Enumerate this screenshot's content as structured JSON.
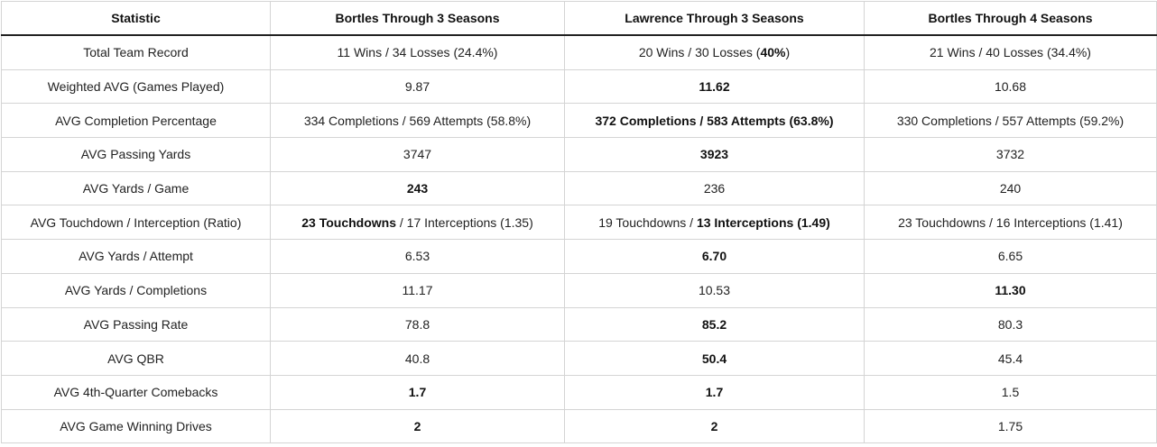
{
  "table": {
    "headers": [
      "Statistic",
      "Bortles Through 3 Seasons",
      "Lawrence Through 3 Seasons",
      "Bortles Through 4 Seasons"
    ],
    "rows": [
      {
        "label": "Total Team Record",
        "cells": [
          [
            {
              "t": "11 Wins / 34 Losses (24.4%)",
              "b": false
            }
          ],
          [
            {
              "t": "20 Wins / 30 Losses (",
              "b": false
            },
            {
              "t": "40%",
              "b": true
            },
            {
              "t": ")",
              "b": false
            }
          ],
          [
            {
              "t": "21 Wins / 40 Losses (34.4%)",
              "b": false
            }
          ]
        ]
      },
      {
        "label": "Weighted AVG (Games Played)",
        "cells": [
          [
            {
              "t": "9.87",
              "b": false
            }
          ],
          [
            {
              "t": "11.62",
              "b": true
            }
          ],
          [
            {
              "t": "10.68",
              "b": false
            }
          ]
        ]
      },
      {
        "label": "AVG Completion Percentage",
        "cells": [
          [
            {
              "t": "334 Completions / 569 Attempts (58.8%)",
              "b": false
            }
          ],
          [
            {
              "t": "372 Completions / 583 Attempts (63.8%)",
              "b": true
            }
          ],
          [
            {
              "t": "330 Completions / 557 Attempts (59.2%)",
              "b": false
            }
          ]
        ]
      },
      {
        "label": "AVG Passing Yards",
        "cells": [
          [
            {
              "t": "3747",
              "b": false
            }
          ],
          [
            {
              "t": "3923",
              "b": true
            }
          ],
          [
            {
              "t": "3732",
              "b": false
            }
          ]
        ]
      },
      {
        "label": "AVG Yards / Game",
        "cells": [
          [
            {
              "t": "243",
              "b": true
            }
          ],
          [
            {
              "t": "236",
              "b": false
            }
          ],
          [
            {
              "t": "240",
              "b": false
            }
          ]
        ]
      },
      {
        "label": "AVG Touchdown / Interception (Ratio)",
        "cells": [
          [
            {
              "t": "23 Touchdowns",
              "b": true
            },
            {
              "t": " / 17 Interceptions (1.35)",
              "b": false
            }
          ],
          [
            {
              "t": "19 Touchdowns / ",
              "b": false
            },
            {
              "t": "13 Interceptions (1.49)",
              "b": true
            }
          ],
          [
            {
              "t": "23 Touchdowns / 16 Interceptions (1.41)",
              "b": false
            }
          ]
        ]
      },
      {
        "label": "AVG Yards / Attempt",
        "cells": [
          [
            {
              "t": "6.53",
              "b": false
            }
          ],
          [
            {
              "t": "6.70",
              "b": true
            }
          ],
          [
            {
              "t": "6.65",
              "b": false
            }
          ]
        ]
      },
      {
        "label": "AVG Yards / Completions",
        "cells": [
          [
            {
              "t": "11.17",
              "b": false
            }
          ],
          [
            {
              "t": "10.53",
              "b": false
            }
          ],
          [
            {
              "t": "11.30",
              "b": true
            }
          ]
        ]
      },
      {
        "label": "AVG Passing Rate",
        "cells": [
          [
            {
              "t": "78.8",
              "b": false
            }
          ],
          [
            {
              "t": "85.2",
              "b": true
            }
          ],
          [
            {
              "t": "80.3",
              "b": false
            }
          ]
        ]
      },
      {
        "label": "AVG QBR",
        "cells": [
          [
            {
              "t": "40.8",
              "b": false
            }
          ],
          [
            {
              "t": "50.4",
              "b": true
            }
          ],
          [
            {
              "t": "45.4",
              "b": false
            }
          ]
        ]
      },
      {
        "label": "AVG 4th-Quarter Comebacks",
        "cells": [
          [
            {
              "t": "1.7",
              "b": true
            }
          ],
          [
            {
              "t": "1.7",
              "b": true
            }
          ],
          [
            {
              "t": "1.5",
              "b": false
            }
          ]
        ]
      },
      {
        "label": "AVG Game Winning Drives",
        "cells": [
          [
            {
              "t": "2",
              "b": true
            }
          ],
          [
            {
              "t": "2",
              "b": true
            }
          ],
          [
            {
              "t": "1.75",
              "b": false
            }
          ]
        ]
      }
    ]
  }
}
